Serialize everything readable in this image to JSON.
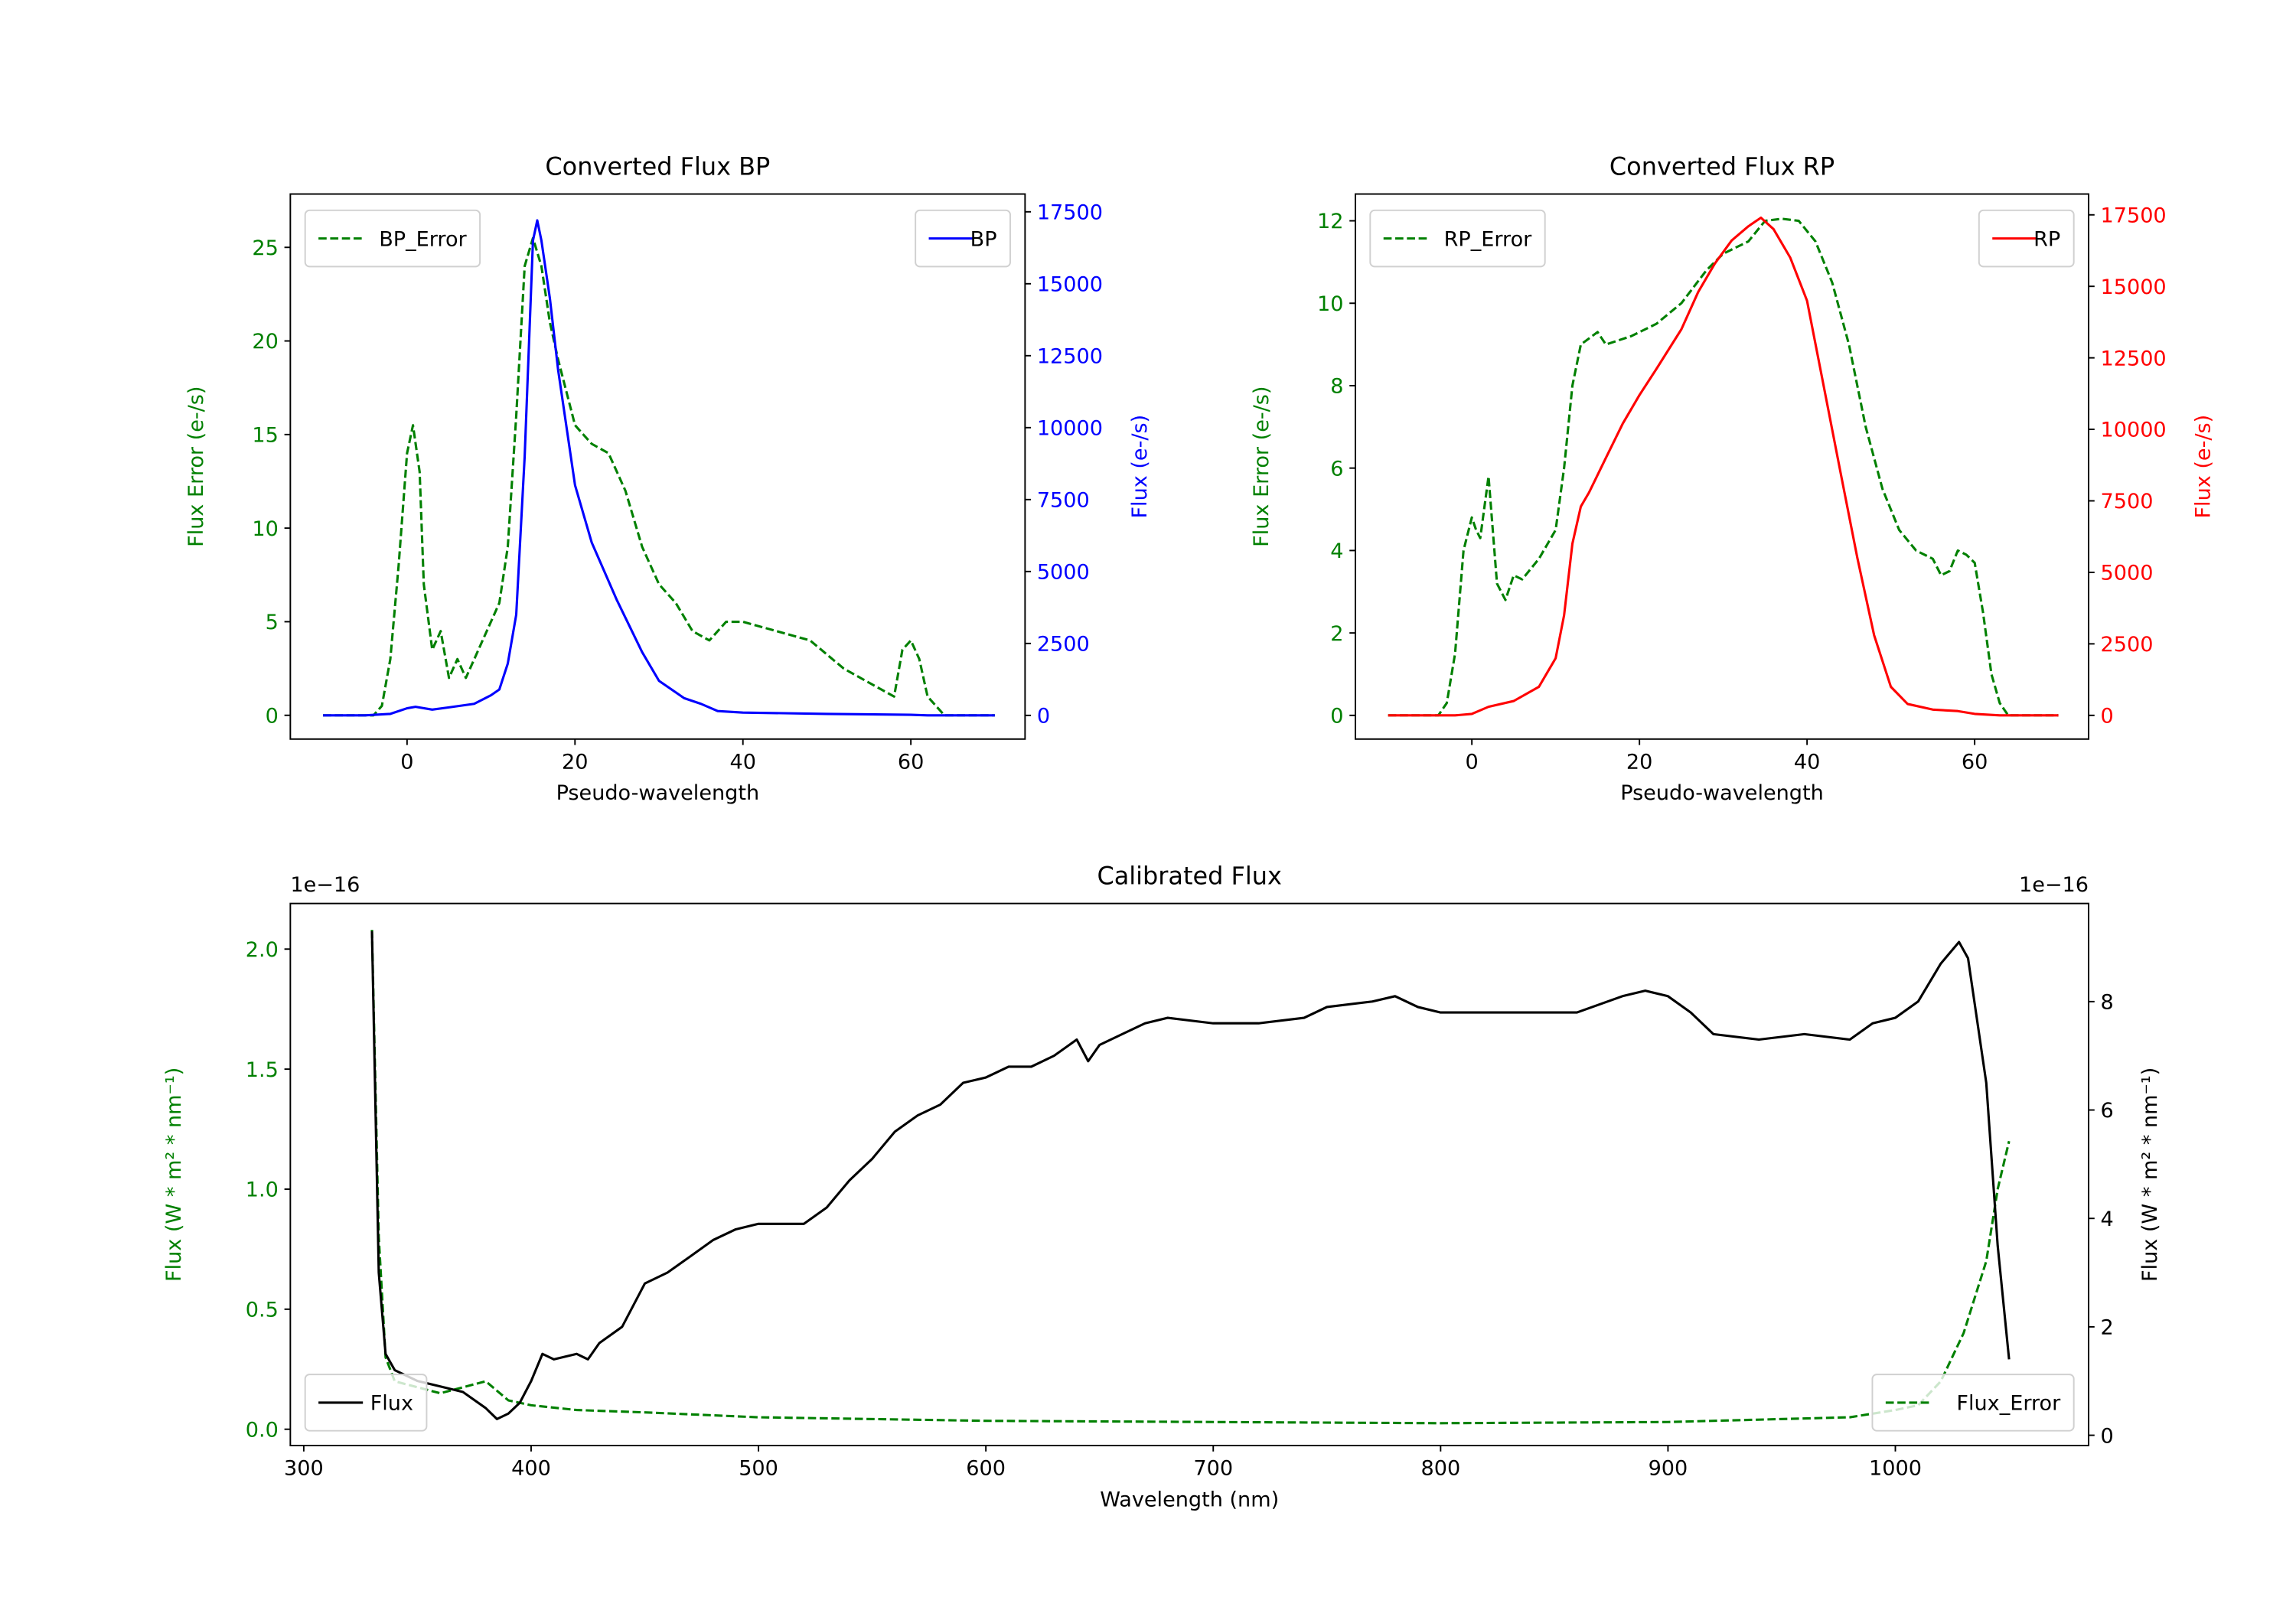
{
  "chart_data": [
    {
      "type": "line",
      "title": "Converted Flux BP",
      "xlabel": "Pseudo-wavelength",
      "ylabel_left": "Flux Error (e-/s)",
      "ylabel_right": "Flux (e-/s)",
      "xlim": [
        -13.9,
        73.6
      ],
      "ylim_left": [
        -1.27,
        27.85
      ],
      "ylim_right": [
        -823,
        18118
      ],
      "xticks": [
        0,
        20,
        40,
        60
      ],
      "yticks_left": [
        0,
        5,
        10,
        15,
        20,
        25
      ],
      "yticks_right": [
        0,
        2500,
        5000,
        7500,
        10000,
        12500,
        15000,
        17500
      ],
      "left_color": "#008000",
      "right_color": "#0000ff",
      "legend_left": {
        "label": "BP_Error",
        "placement": "upper left"
      },
      "legend_right": {
        "label": "BP",
        "placement": "upper right"
      },
      "series": [
        {
          "name": "BP_Error",
          "axis": "left",
          "style": "dashed",
          "color": "#008000",
          "x": [
            -10,
            -4,
            -3,
            -2,
            -1,
            0,
            0.7,
            1.5,
            2,
            3,
            4,
            5,
            6,
            7,
            9,
            11,
            12,
            13,
            14,
            15,
            16,
            17,
            18,
            20,
            21,
            22,
            24,
            26,
            28,
            30,
            32,
            34,
            36,
            38,
            40,
            44,
            48,
            52,
            56,
            58,
            59,
            60,
            61,
            62,
            64,
            70
          ],
          "y": [
            0,
            0,
            0.5,
            3,
            8,
            14,
            15.5,
            13,
            7,
            3.5,
            4.5,
            2,
            3,
            2,
            4,
            6,
            9,
            16,
            24,
            25.5,
            24,
            21,
            19,
            15.5,
            15,
            14.5,
            14,
            12,
            9,
            7,
            6,
            4.5,
            4,
            5,
            5,
            4.5,
            4,
            2.5,
            1.5,
            1,
            3.5,
            4,
            3,
            1,
            0,
            0
          ]
        },
        {
          "name": "BP",
          "axis": "right",
          "style": "solid",
          "color": "#0000ff",
          "x": [
            -10,
            -5,
            -2,
            0,
            1,
            3,
            5,
            8,
            10,
            11,
            12,
            13,
            14,
            15,
            15.5,
            16,
            17,
            18,
            20,
            22,
            25,
            28,
            30,
            33,
            35,
            37,
            40,
            50,
            60,
            62,
            70
          ],
          "y": [
            0,
            0,
            50,
            250,
            300,
            200,
            280,
            400,
            700,
            900,
            1800,
            3500,
            9000,
            16500,
            17200,
            16500,
            14500,
            12000,
            8000,
            6000,
            4000,
            2200,
            1200,
            600,
            400,
            150,
            100,
            50,
            20,
            0,
            0
          ]
        }
      ]
    },
    {
      "type": "line",
      "title": "Converted Flux RP",
      "xlabel": "Pseudo-wavelength",
      "ylabel_left": "Flux Error (e-/s)",
      "ylabel_right": "Flux (e-/s)",
      "xlim": [
        -13.9,
        73.6
      ],
      "ylim_left": [
        -0.575,
        12.65
      ],
      "ylim_right": [
        -829,
        18228
      ],
      "xticks": [
        0,
        20,
        40,
        60
      ],
      "yticks_left": [
        0,
        2,
        4,
        6,
        8,
        10,
        12
      ],
      "yticks_right": [
        0,
        2500,
        5000,
        7500,
        10000,
        12500,
        15000,
        17500
      ],
      "left_color": "#008000",
      "right_color": "#ff0000",
      "legend_left": {
        "label": "RP_Error",
        "placement": "upper left"
      },
      "legend_right": {
        "label": "RP",
        "placement": "upper right"
      },
      "series": [
        {
          "name": "RP_Error",
          "axis": "left",
          "style": "dashed",
          "color": "#008000",
          "x": [
            -10,
            -4,
            -3,
            -2,
            -1,
            0,
            0.5,
            1,
            2,
            3,
            4,
            5,
            6,
            8,
            10,
            11,
            12,
            13,
            15,
            16,
            19,
            22,
            25,
            28,
            30,
            33,
            35,
            37,
            39,
            41,
            43,
            45,
            47,
            49,
            51,
            53,
            55,
            56,
            57,
            58,
            59,
            60,
            61,
            62,
            63,
            64,
            70
          ],
          "y": [
            0,
            0,
            0.3,
            1.5,
            4,
            4.8,
            4.5,
            4.3,
            5.8,
            3.2,
            2.8,
            3.4,
            3.3,
            3.8,
            4.5,
            6,
            8,
            9,
            9.3,
            9,
            9.2,
            9.5,
            10,
            10.8,
            11.2,
            11.5,
            12,
            12.05,
            12,
            11.5,
            10.5,
            9,
            7,
            5.5,
            4.5,
            4,
            3.8,
            3.4,
            3.5,
            4,
            3.9,
            3.7,
            2.5,
            1,
            0.3,
            0,
            0
          ]
        },
        {
          "name": "RP",
          "axis": "right",
          "style": "solid",
          "color": "#ff0000",
          "x": [
            -10,
            -2,
            0,
            2,
            5,
            8,
            10,
            11,
            12,
            13,
            14,
            16,
            18,
            20,
            22,
            25,
            27,
            29,
            31,
            33,
            34.5,
            36,
            38,
            40,
            42,
            44,
            46,
            48,
            50,
            52,
            55,
            58,
            60,
            63,
            70
          ],
          "y": [
            0,
            0,
            50,
            300,
            500,
            1000,
            2000,
            3500,
            6000,
            7300,
            7800,
            9000,
            10200,
            11200,
            12100,
            13500,
            14800,
            15800,
            16600,
            17100,
            17400,
            17000,
            16000,
            14500,
            11500,
            8500,
            5500,
            2800,
            1000,
            400,
            200,
            150,
            50,
            0,
            0
          ]
        }
      ]
    },
    {
      "type": "line",
      "title": "Calibrated Flux",
      "xlabel": "Wavelength (nm)",
      "ylabel_left": "Flux (W * m² * nm⁻¹)",
      "ylabel_right": "Flux (W * m² * nm⁻¹)",
      "offset_left": "1e−16",
      "offset_right": "1e−16",
      "xlim": [
        294.1,
        1085
      ],
      "ylim_left": [
        -0.068,
        2.19
      ],
      "ylim_right": [
        -0.19,
        9.81
      ],
      "xticks": [
        300,
        400,
        500,
        600,
        700,
        800,
        900,
        1000
      ],
      "yticks_left": [
        0.0,
        0.5,
        1.0,
        1.5,
        2.0
      ],
      "yticks_left_labels": [
        "0.0",
        "0.5",
        "1.0",
        "1.5",
        "2.0"
      ],
      "yticks_right": [
        0,
        2,
        4,
        6,
        8
      ],
      "left_color": "#008000",
      "right_color": "#000000",
      "legend_left": {
        "label": "Flux",
        "placement": "lower left"
      },
      "legend_right": {
        "label": "Flux_Error",
        "placement": "lower right"
      },
      "series": [
        {
          "name": "Flux_Error",
          "axis": "left",
          "style": "dashed",
          "color": "#008000",
          "x": [
            330,
            333,
            336,
            340,
            360,
            380,
            390,
            400,
            420,
            450,
            500,
            600,
            700,
            800,
            900,
            980,
            1000,
            1010,
            1020,
            1030,
            1040,
            1045,
            1050
          ],
          "y": [
            2.08,
            0.8,
            0.3,
            0.2,
            0.15,
            0.2,
            0.12,
            0.1,
            0.08,
            0.07,
            0.05,
            0.035,
            0.03,
            0.025,
            0.03,
            0.05,
            0.08,
            0.1,
            0.2,
            0.4,
            0.7,
            1.0,
            1.2
          ]
        },
        {
          "name": "Flux",
          "axis": "right",
          "style": "solid",
          "color": "#000000",
          "x": [
            330,
            333,
            336,
            340,
            350,
            360,
            370,
            380,
            385,
            390,
            395,
            400,
            405,
            410,
            420,
            425,
            430,
            440,
            450,
            460,
            470,
            480,
            490,
            500,
            510,
            520,
            530,
            540,
            550,
            560,
            570,
            580,
            590,
            600,
            610,
            620,
            630,
            640,
            645,
            650,
            660,
            670,
            680,
            700,
            720,
            740,
            750,
            770,
            780,
            790,
            800,
            820,
            840,
            860,
            880,
            890,
            900,
            910,
            920,
            940,
            960,
            980,
            990,
            1000,
            1010,
            1020,
            1028,
            1032,
            1040,
            1045,
            1050
          ],
          "y": [
            9.3,
            3,
            1.5,
            1.2,
            1.0,
            0.9,
            0.8,
            0.5,
            0.3,
            0.4,
            0.6,
            1.0,
            1.5,
            1.4,
            1.5,
            1.4,
            1.7,
            2.0,
            2.8,
            3.0,
            3.3,
            3.6,
            3.8,
            3.9,
            3.9,
            3.9,
            4.2,
            4.7,
            5.1,
            5.6,
            5.9,
            6.1,
            6.5,
            6.6,
            6.8,
            6.8,
            7.0,
            7.3,
            6.9,
            7.2,
            7.4,
            7.6,
            7.7,
            7.6,
            7.6,
            7.7,
            7.9,
            8.0,
            8.1,
            7.9,
            7.8,
            7.8,
            7.8,
            7.8,
            8.1,
            8.2,
            8.1,
            7.8,
            7.4,
            7.3,
            7.4,
            7.3,
            7.6,
            7.7,
            8.0,
            8.7,
            9.1,
            8.8,
            6.5,
            3.5,
            1.4
          ]
        }
      ]
    }
  ]
}
